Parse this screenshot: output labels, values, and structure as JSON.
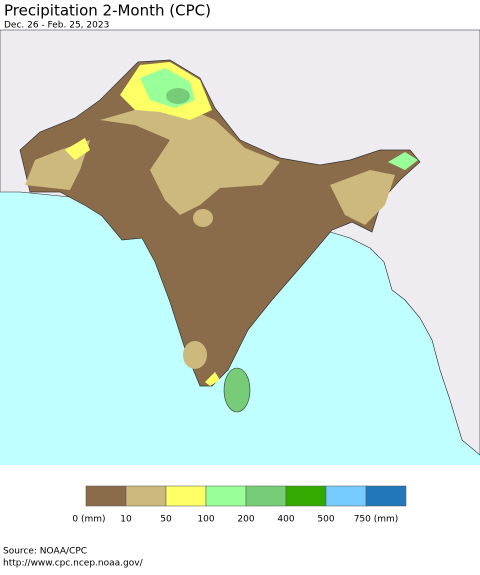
{
  "header": {
    "title": "Precipitation 2-Month (CPC)",
    "subtitle": "Dec. 26 - Feb. 25, 2023"
  },
  "legend": {
    "colors": [
      "#8b6c4a",
      "#cdb97e",
      "#ffff66",
      "#99ff99",
      "#77cc77",
      "#33aa00",
      "#77ccff",
      "#2277bb"
    ],
    "labels": [
      "0 (mm)",
      "10",
      "50",
      "100",
      "200",
      "400",
      "500",
      "750 (mm)"
    ]
  },
  "footer": {
    "source": "Source: NOAA/CPC",
    "url": "http://www.cpc.ncep.noaa.gov/"
  }
}
